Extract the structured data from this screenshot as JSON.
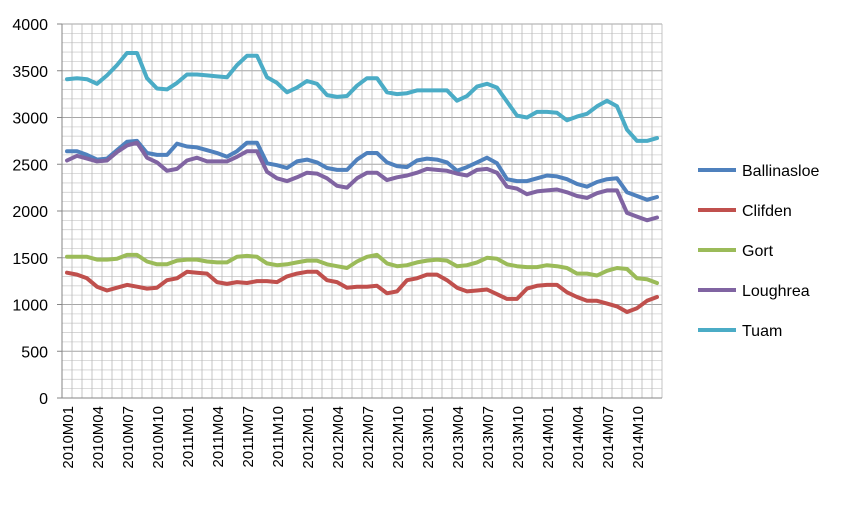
{
  "chart_data": {
    "type": "line",
    "title": "",
    "xlabel": "",
    "ylabel": "",
    "ylim": [
      0,
      4000
    ],
    "yticks": [
      0,
      500,
      1000,
      1500,
      2000,
      2500,
      3000,
      3500,
      4000
    ],
    "grid": true,
    "legend_position": "right",
    "x": [
      "2010M01",
      "2010M02",
      "2010M03",
      "2010M04",
      "2010M05",
      "2010M06",
      "2010M07",
      "2010M08",
      "2010M09",
      "2010M10",
      "2010M11",
      "2010M12",
      "2011M01",
      "2011M02",
      "2011M03",
      "2011M04",
      "2011M05",
      "2011M06",
      "2011M07",
      "2011M08",
      "2011M09",
      "2011M10",
      "2011M11",
      "2011M12",
      "2012M01",
      "2012M02",
      "2012M03",
      "2012M04",
      "2012M05",
      "2012M06",
      "2012M07",
      "2012M08",
      "2012M09",
      "2012M10",
      "2012M11",
      "2012M12",
      "2013M01",
      "2013M02",
      "2013M03",
      "2013M04",
      "2013M05",
      "2013M06",
      "2013M07",
      "2013M08",
      "2013M09",
      "2013M10",
      "2013M11",
      "2013M12",
      "2014M01",
      "2014M02",
      "2014M03",
      "2014M04",
      "2014M05",
      "2014M06",
      "2014M07",
      "2014M08",
      "2014M09",
      "2014M10",
      "2014M11",
      "2014M12"
    ],
    "xtick_labels": [
      "2010M01",
      "2010M04",
      "2010M07",
      "2010M10",
      "2011M01",
      "2011M04",
      "2011M07",
      "2011M10",
      "2012M01",
      "2012M04",
      "2012M07",
      "2012M10",
      "2013M01",
      "2013M04",
      "2013M07",
      "2013M10",
      "2014M01",
      "2014M04",
      "2014M07",
      "2014M10"
    ],
    "series": [
      {
        "name": "Ballinasloe",
        "color": "#4f81bd",
        "values": [
          2640,
          2640,
          2600,
          2550,
          2560,
          2650,
          2740,
          2750,
          2620,
          2600,
          2600,
          2720,
          2690,
          2680,
          2650,
          2620,
          2580,
          2640,
          2730,
          2730,
          2510,
          2490,
          2460,
          2530,
          2550,
          2520,
          2460,
          2440,
          2440,
          2550,
          2620,
          2620,
          2520,
          2480,
          2470,
          2540,
          2560,
          2550,
          2520,
          2430,
          2470,
          2520,
          2570,
          2510,
          2340,
          2320,
          2320,
          2350,
          2380,
          2370,
          2340,
          2290,
          2260,
          2310,
          2340,
          2350,
          2200,
          2160,
          2120,
          2150
        ]
      },
      {
        "name": "Clifden",
        "color": "#c0504d",
        "values": [
          1340,
          1320,
          1280,
          1190,
          1150,
          1180,
          1210,
          1190,
          1170,
          1180,
          1260,
          1280,
          1350,
          1340,
          1330,
          1240,
          1220,
          1240,
          1230,
          1250,
          1250,
          1240,
          1300,
          1330,
          1350,
          1350,
          1260,
          1240,
          1180,
          1190,
          1190,
          1200,
          1120,
          1140,
          1260,
          1280,
          1320,
          1320,
          1260,
          1180,
          1140,
          1150,
          1160,
          1110,
          1060,
          1060,
          1170,
          1200,
          1210,
          1210,
          1130,
          1080,
          1040,
          1040,
          1010,
          980,
          920,
          960,
          1040,
          1080
        ]
      },
      {
        "name": "Gort",
        "color": "#9bbb59",
        "values": [
          1510,
          1510,
          1510,
          1480,
          1480,
          1490,
          1530,
          1530,
          1460,
          1430,
          1430,
          1470,
          1480,
          1480,
          1460,
          1450,
          1450,
          1510,
          1520,
          1510,
          1440,
          1420,
          1430,
          1450,
          1470,
          1470,
          1430,
          1410,
          1390,
          1460,
          1510,
          1530,
          1440,
          1410,
          1420,
          1450,
          1470,
          1480,
          1470,
          1410,
          1420,
          1450,
          1500,
          1490,
          1430,
          1410,
          1400,
          1400,
          1420,
          1410,
          1390,
          1330,
          1330,
          1310,
          1360,
          1390,
          1380,
          1280,
          1270,
          1230
        ]
      },
      {
        "name": "Loughrea",
        "color": "#8064a2",
        "values": [
          2540,
          2590,
          2560,
          2530,
          2540,
          2630,
          2700,
          2730,
          2570,
          2520,
          2430,
          2450,
          2540,
          2570,
          2530,
          2530,
          2530,
          2580,
          2640,
          2640,
          2420,
          2350,
          2320,
          2360,
          2410,
          2400,
          2350,
          2270,
          2250,
          2350,
          2410,
          2410,
          2330,
          2360,
          2380,
          2410,
          2450,
          2440,
          2430,
          2400,
          2380,
          2440,
          2450,
          2410,
          2260,
          2240,
          2180,
          2210,
          2220,
          2230,
          2200,
          2160,
          2140,
          2190,
          2220,
          2220,
          1980,
          1940,
          1900,
          1930
        ]
      },
      {
        "name": "Tuam",
        "color": "#4bacc6",
        "values": [
          3410,
          3420,
          3410,
          3360,
          3450,
          3560,
          3690,
          3690,
          3420,
          3310,
          3300,
          3370,
          3460,
          3460,
          3450,
          3440,
          3430,
          3560,
          3660,
          3660,
          3430,
          3370,
          3270,
          3320,
          3390,
          3360,
          3240,
          3220,
          3230,
          3340,
          3420,
          3420,
          3270,
          3250,
          3260,
          3290,
          3290,
          3290,
          3290,
          3180,
          3230,
          3330,
          3360,
          3320,
          3170,
          3020,
          3000,
          3060,
          3060,
          3050,
          2970,
          3010,
          3040,
          3120,
          3180,
          3120,
          2870,
          2750,
          2750,
          2780
        ]
      }
    ]
  }
}
